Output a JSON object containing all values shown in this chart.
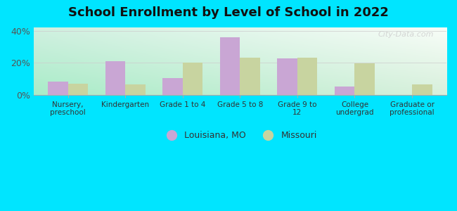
{
  "title": "School Enrollment by Level of School in 2022",
  "categories": [
    "Nursery,\npreschool",
    "Kindergarten",
    "Grade 1 to 4",
    "Grade 5 to 8",
    "Grade 9 to\n12",
    "College\nundergrad",
    "Graduate or\nprofessional"
  ],
  "louisiana_values": [
    8.0,
    21.0,
    10.5,
    36.0,
    22.5,
    5.0,
    0.0
  ],
  "missouri_values": [
    7.0,
    6.5,
    20.0,
    23.0,
    23.0,
    19.5,
    6.5
  ],
  "louisiana_color": "#c9a6d4",
  "missouri_color": "#c8d4a0",
  "background_outer": "#00e5ff",
  "bg_color_topleft": "#b2f0d0",
  "bg_color_topright": "#e8f5e8",
  "bg_color_bottomleft": "#a8ecc8",
  "bg_color_white": "#ffffff",
  "ylim": [
    0,
    42
  ],
  "yticks": [
    0,
    20,
    40
  ],
  "ytick_labels": [
    "0%",
    "20%",
    "40%"
  ],
  "bar_width": 0.35,
  "legend_label_louisiana": "Louisiana, MO",
  "legend_label_missouri": "Missouri",
  "watermark": "City-Data.com"
}
